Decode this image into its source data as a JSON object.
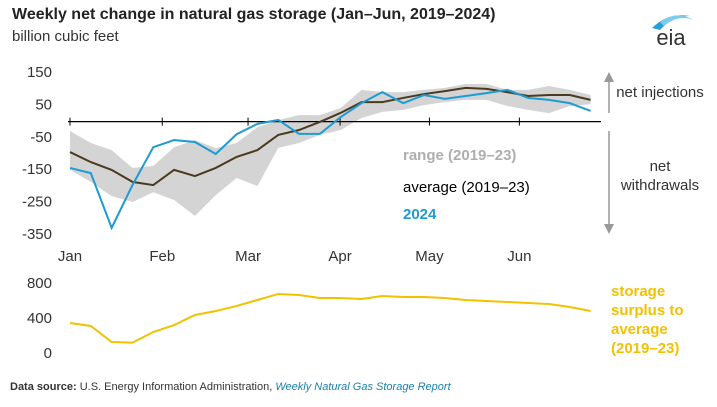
{
  "title": "Weekly net change in natural gas storage (Jan–Jun, 2019–2024)",
  "subtitle": "billion cubic feet",
  "logo": "eia",
  "source": {
    "label": "Data source:",
    "text": "U.S. Energy Information Administration,",
    "report": "Weekly Natural Gas Storage Report"
  },
  "chart_data": [
    {
      "type": "line",
      "x": [
        0,
        1,
        2,
        3,
        4,
        5,
        6,
        7,
        8,
        9,
        10,
        11,
        12,
        13,
        14,
        15,
        16,
        17,
        18,
        19,
        20,
        21,
        22,
        23,
        24,
        25
      ],
      "xlim": [
        0,
        25.5
      ],
      "xticks": [
        {
          "value": 0,
          "label": "Jan"
        },
        {
          "value": 4.43,
          "label": "Feb"
        },
        {
          "value": 8.55,
          "label": "Mar"
        },
        {
          "value": 12.97,
          "label": "Apr"
        },
        {
          "value": 17.26,
          "label": "May"
        },
        {
          "value": 21.58,
          "label": "Jun"
        }
      ],
      "ylim": [
        -350,
        150
      ],
      "yticks": [
        150,
        50,
        -50,
        -150,
        -250,
        -350
      ],
      "band": {
        "name": "range (2019–23)",
        "color": "#d4d4d4",
        "high": [
          -29,
          -66,
          -88,
          -143,
          -137,
          -79,
          -57,
          -82,
          -66,
          -17,
          5,
          20,
          20,
          42,
          98,
          91,
          91,
          98,
          104,
          116,
          116,
          98,
          98,
          110,
          98,
          82
        ],
        "low": [
          -149,
          -186,
          -230,
          -248,
          -218,
          -242,
          -291,
          -227,
          -174,
          -199,
          -81,
          -66,
          -41,
          -26,
          11,
          30,
          36,
          51,
          60,
          67,
          67,
          48,
          36,
          26,
          48,
          54
        ]
      },
      "series": [
        {
          "name": "average (2019–23)",
          "color": "#4a3a1e",
          "values": [
            -94,
            -125,
            -149,
            -186,
            -196,
            -149,
            -168,
            -143,
            -109,
            -88,
            -41,
            -26,
            -1,
            27,
            60,
            60,
            73,
            85,
            94,
            104,
            101,
            91,
            79,
            82,
            82,
            67
          ]
        },
        {
          "name": "2024",
          "color": "#1f9bd1",
          "values": [
            -143,
            -159,
            -328,
            -196,
            -79,
            -57,
            -63,
            -100,
            -39,
            -7,
            5,
            -38,
            -38,
            14,
            57,
            91,
            57,
            82,
            70,
            79,
            88,
            98,
            73,
            67,
            57,
            33
          ]
        }
      ],
      "annotations": [
        "net injections",
        "net withdrawals"
      ]
    },
    {
      "type": "line",
      "x": [
        0,
        1,
        2,
        3,
        4,
        5,
        6,
        7,
        8,
        9,
        10,
        11,
        12,
        13,
        14,
        15,
        16,
        17,
        18,
        19,
        20,
        21,
        22,
        23,
        24,
        25
      ],
      "xlim": [
        0,
        25.5
      ],
      "ylim": [
        0,
        800
      ],
      "yticks": [
        800,
        400,
        0
      ],
      "series": [
        {
          "name": "storage surplus to average (2019–23)",
          "color": "#f2c200",
          "values": [
            354,
            320,
            137,
            130,
            251,
            331,
            446,
            491,
            549,
            617,
            686,
            674,
            640,
            640,
            629,
            663,
            651,
            651,
            640,
            617,
            606,
            594,
            583,
            571,
            537,
            491
          ]
        }
      ]
    }
  ]
}
